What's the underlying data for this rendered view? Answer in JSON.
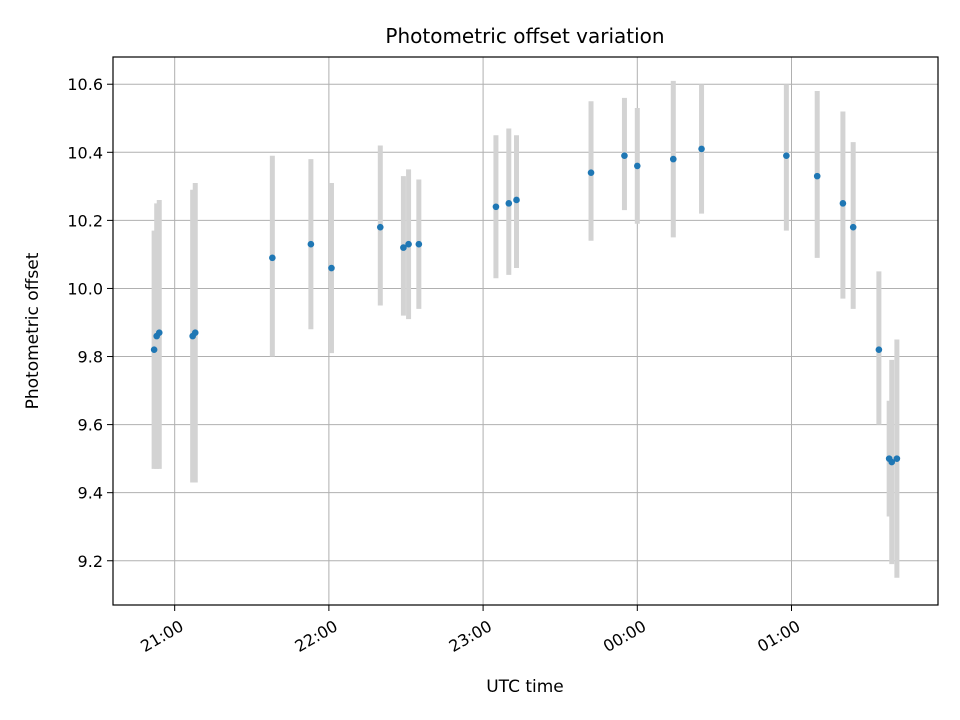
{
  "chart_data": {
    "type": "scatter",
    "title": "Photometric offset variation",
    "xlabel": "UTC time",
    "ylabel": "Photometric offset",
    "xlim": [
      "20:36",
      "01:57"
    ],
    "ylim": [
      9.07,
      10.68
    ],
    "grid": true,
    "x_ticks": [
      "21:00",
      "22:00",
      "23:00",
      "00:00",
      "01:00"
    ],
    "y_ticks": [
      9.2,
      9.4,
      9.6,
      9.8,
      10.0,
      10.2,
      10.4,
      10.6
    ],
    "y_tick_labels": [
      "9.2",
      "9.4",
      "9.6",
      "9.8",
      "10.0",
      "10.2",
      "10.4",
      "10.6"
    ],
    "colors": {
      "point": "#1f77b4",
      "errorbar": "#d3d3d3",
      "grid": "#b0b0b0"
    },
    "points": [
      {
        "time": "20:52",
        "y": 9.82,
        "err_low": 9.47,
        "err_high": 10.17
      },
      {
        "time": "20:53",
        "y": 9.86,
        "err_low": 9.47,
        "err_high": 10.25
      },
      {
        "time": "20:54",
        "y": 9.87,
        "err_low": 9.47,
        "err_high": 10.26
      },
      {
        "time": "21:07",
        "y": 9.86,
        "err_low": 9.43,
        "err_high": 10.29
      },
      {
        "time": "21:08",
        "y": 9.87,
        "err_low": 9.43,
        "err_high": 10.31
      },
      {
        "time": "21:38",
        "y": 10.09,
        "err_low": 9.8,
        "err_high": 10.39
      },
      {
        "time": "21:53",
        "y": 10.13,
        "err_low": 9.88,
        "err_high": 10.38
      },
      {
        "time": "22:01",
        "y": 10.06,
        "err_low": 9.81,
        "err_high": 10.31
      },
      {
        "time": "22:20",
        "y": 10.18,
        "err_low": 9.95,
        "err_high": 10.42
      },
      {
        "time": "22:29",
        "y": 10.12,
        "err_low": 9.92,
        "err_high": 10.33
      },
      {
        "time": "22:31",
        "y": 10.13,
        "err_low": 9.91,
        "err_high": 10.35
      },
      {
        "time": "22:35",
        "y": 10.13,
        "err_low": 9.94,
        "err_high": 10.32
      },
      {
        "time": "23:05",
        "y": 10.24,
        "err_low": 10.03,
        "err_high": 10.45
      },
      {
        "time": "23:10",
        "y": 10.25,
        "err_low": 10.04,
        "err_high": 10.47
      },
      {
        "time": "23:13",
        "y": 10.26,
        "err_low": 10.06,
        "err_high": 10.45
      },
      {
        "time": "23:42",
        "y": 10.34,
        "err_low": 10.14,
        "err_high": 10.55
      },
      {
        "time": "23:55",
        "y": 10.39,
        "err_low": 10.23,
        "err_high": 10.56
      },
      {
        "time": "00:00",
        "y": 10.36,
        "err_low": 10.19,
        "err_high": 10.53
      },
      {
        "time": "00:14",
        "y": 10.38,
        "err_low": 10.15,
        "err_high": 10.61
      },
      {
        "time": "00:25",
        "y": 10.41,
        "err_low": 10.22,
        "err_high": 10.6
      },
      {
        "time": "00:58",
        "y": 10.39,
        "err_low": 10.17,
        "err_high": 10.6
      },
      {
        "time": "01:10",
        "y": 10.33,
        "err_low": 10.09,
        "err_high": 10.58
      },
      {
        "time": "01:20",
        "y": 10.25,
        "err_low": 9.97,
        "err_high": 10.52
      },
      {
        "time": "01:24",
        "y": 10.18,
        "err_low": 9.94,
        "err_high": 10.43
      },
      {
        "time": "01:34",
        "y": 9.82,
        "err_low": 9.6,
        "err_high": 10.05
      },
      {
        "time": "01:38",
        "y": 9.5,
        "err_low": 9.33,
        "err_high": 9.67
      },
      {
        "time": "01:39",
        "y": 9.49,
        "err_low": 9.19,
        "err_high": 9.79
      },
      {
        "time": "01:41",
        "y": 9.5,
        "err_low": 9.15,
        "err_high": 9.85
      }
    ]
  }
}
